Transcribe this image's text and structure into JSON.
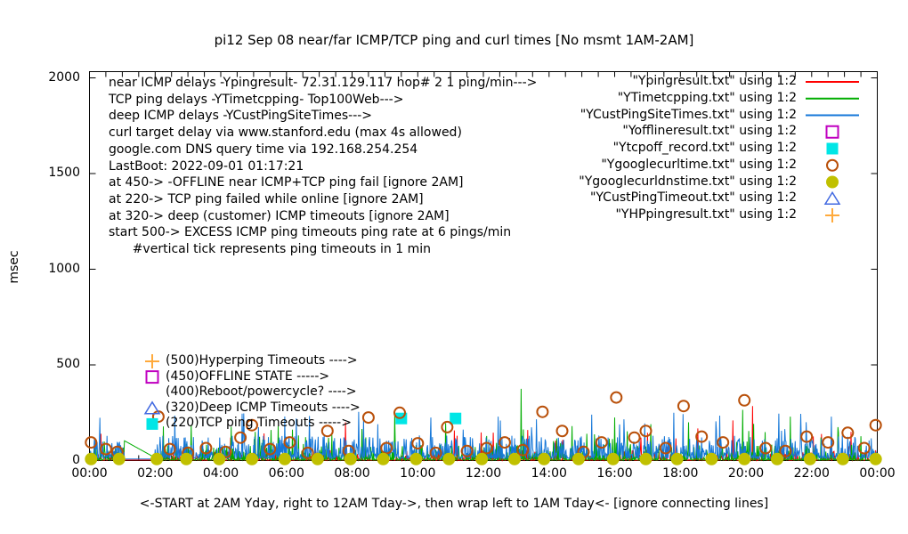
{
  "title": "pi12 Sep 08  near/far ICMP/TCP ping and curl times [No msmt 1AM-2AM]",
  "y_axis_label": "msec",
  "x_caption": "<-START at 2AM Yday, right to 12AM Tday->, then wrap left to 1AM Tday<- [ignore connecting lines]",
  "info_block": {
    "lines": [
      "near ICMP delays -Ypingresult- 72.31.129.117 hop# 2 1 ping/min--->",
      "TCP ping delays -YTimetcpping- Top100Web--->",
      "deep ICMP delays -YCustPingSiteTimes--->",
      "curl target delay via www.stanford.edu (max 4s allowed)",
      "google.com DNS query time via 192.168.254.254",
      "LastBoot: 2022-09-01 01:17:21",
      "at 450-> -OFFLINE near ICMP+TCP ping fail [ignore 2AM]",
      "at 220-> TCP ping failed while online [ignore 2AM]",
      "at 320-> deep (customer) ICMP timeouts [ignore 2AM]",
      "start 500-> EXCESS ICMP ping timeouts ping rate at 6 pings/min",
      "      #vertical tick represents ping timeouts in 1 min"
    ]
  },
  "legend": [
    {
      "label": "\"Ypingresult.txt\" using 1:2",
      "marker": "line",
      "color": "#ff0000"
    },
    {
      "label": "\"YTimetcpping.txt\" using 1:2",
      "marker": "line",
      "color": "#00ad00"
    },
    {
      "label": "\"YCustPingSiteTimes.txt\" using 1:2",
      "marker": "line",
      "color": "#1577d8"
    },
    {
      "label": "\"Yofflineresult.txt\" using 1:2",
      "marker": "open-square",
      "color": "#c000c0"
    },
    {
      "label": "\"Ytcpoff_record.txt\" using 1:2",
      "marker": "filled-square",
      "color": "#00e6e6"
    },
    {
      "label": "\"Ygooglecurltime.txt\" using 1:2",
      "marker": "open-circle",
      "color": "#b9500a"
    },
    {
      "label": "\"Ygooglecurldnstime.txt\" using 1:2",
      "marker": "filled-circle",
      "color": "#c0c000"
    },
    {
      "label": "\"YCustPingTimeout.txt\" using 1:2",
      "marker": "open-triangle",
      "color": "#4169e1"
    },
    {
      "label": "\"YHPpingresult.txt\" using 1:2",
      "marker": "plus",
      "color": "#ffaa3c"
    }
  ],
  "plot_annotations": [
    {
      "marker": "plus",
      "color": "#ffaa3c",
      "label": "(500)Hyperping Timeouts ---->"
    },
    {
      "marker": "open-square",
      "color": "#c000c0",
      "label": "(450)OFFLINE STATE ----->"
    },
    {
      "marker": "none",
      "color": "",
      "label": "(400)Reboot/powercycle? ---->"
    },
    {
      "marker": "open-triangle",
      "color": "#4169e1",
      "label": "(320)Deep ICMP Timeouts ---->"
    },
    {
      "marker": "filled-square",
      "color": "#00e6e6",
      "label": "(220)TCP ping Timeouts ----->"
    }
  ],
  "chart_data": {
    "type": "line",
    "title": "pi12 Sep 08  near/far ICMP/TCP ping and curl times [No msmt 1AM-2AM]",
    "xlabel": "<-START at 2AM Yday, right to 12AM Tday->, then wrap left to 1AM Tday<- [ignore connecting lines]",
    "ylabel": "msec",
    "grid": false,
    "legend_position": "top-right",
    "ylim": [
      0,
      2000
    ],
    "y_ticks": [
      "0",
      "500",
      "1000",
      "1500",
      "2000"
    ],
    "x_range_hours": [
      0,
      24
    ],
    "x_ticks": [
      "00:00",
      "02:00",
      "04:00",
      "06:00",
      "08:00",
      "10:00",
      "12:00",
      "14:00",
      "16:00",
      "18:00",
      "20:00",
      "22:00",
      "00:00"
    ],
    "x_minor_tick_minutes": 30,
    "no_measurement_gap_hours": [
      1.05,
      2.0
    ],
    "noise_seed": 42,
    "series": [
      {
        "name": "Ypingresult.txt",
        "style": "impulse-line",
        "color": "#ff0000",
        "desc": "near ICMP ping delays, 1 ping/min, dense noise",
        "typical_range_ms": [
          2,
          60
        ],
        "spikes": [
          [
            0.35,
            140
          ],
          [
            4.3,
            120
          ],
          [
            7.8,
            200
          ],
          [
            11.2,
            130
          ],
          [
            13.35,
            160
          ],
          [
            17.0,
            145
          ],
          [
            19.6,
            210
          ],
          [
            20.2,
            285
          ],
          [
            23.2,
            150
          ]
        ]
      },
      {
        "name": "YTimetcpping.txt",
        "style": "impulse-line",
        "color": "#00ad00",
        "desc": "TCP ping delays Top100Web, dense noise",
        "typical_range_ms": [
          3,
          90
        ],
        "spikes": [
          [
            3.1,
            185
          ],
          [
            5.05,
            150
          ],
          [
            8.3,
            165
          ],
          [
            9.3,
            240
          ],
          [
            13.15,
            375
          ],
          [
            14.7,
            180
          ],
          [
            16.0,
            225
          ],
          [
            17.1,
            190
          ],
          [
            18.25,
            200
          ],
          [
            19.9,
            265
          ],
          [
            21.35,
            230
          ],
          [
            22.8,
            175
          ]
        ],
        "wrap_connector": {
          "from": [
            1.05,
            105
          ],
          "to": [
            2.0,
            15
          ]
        }
      },
      {
        "name": "YCustPingSiteTimes.txt",
        "style": "impulse-line",
        "color": "#1577d8",
        "desc": "deep ICMP ping delays, dense noise",
        "typical_range_ms": [
          15,
          160
        ],
        "spikes": [
          [
            2.6,
            235
          ],
          [
            4.65,
            245
          ],
          [
            6.3,
            220
          ],
          [
            8.2,
            255
          ],
          [
            10.4,
            225
          ],
          [
            12.45,
            230
          ],
          [
            15.3,
            240
          ],
          [
            17.8,
            250
          ],
          [
            19.2,
            235
          ],
          [
            21.0,
            245
          ],
          [
            22.6,
            230
          ]
        ]
      },
      {
        "name": "Yofflineresult.txt",
        "style": "points",
        "marker": "open-square",
        "color": "#c000c0",
        "marker_value_ms": 450,
        "points": []
      },
      {
        "name": "Ytcpoff_record.txt",
        "style": "points",
        "marker": "filled-square",
        "color": "#00e6e6",
        "marker_value_ms": 220,
        "points": [
          [
            9.5,
            220
          ],
          [
            11.15,
            220
          ]
        ]
      },
      {
        "name": "Ygooglecurltime.txt",
        "style": "points",
        "marker": "open-circle",
        "color": "#b9500a",
        "points": [
          [
            0.05,
            95
          ],
          [
            0.5,
            60
          ],
          [
            0.85,
            45
          ],
          [
            2.1,
            230
          ],
          [
            2.45,
            60
          ],
          [
            3.0,
            40
          ],
          [
            3.55,
            65
          ],
          [
            4.15,
            45
          ],
          [
            4.6,
            120
          ],
          [
            4.95,
            185
          ],
          [
            5.5,
            60
          ],
          [
            6.1,
            95
          ],
          [
            6.65,
            40
          ],
          [
            7.25,
            155
          ],
          [
            7.9,
            50
          ],
          [
            8.5,
            225
          ],
          [
            9.05,
            65
          ],
          [
            9.45,
            250
          ],
          [
            10.0,
            90
          ],
          [
            10.55,
            40
          ],
          [
            10.9,
            175
          ],
          [
            11.5,
            50
          ],
          [
            12.1,
            65
          ],
          [
            12.65,
            95
          ],
          [
            13.2,
            55
          ],
          [
            13.8,
            255
          ],
          [
            14.4,
            155
          ],
          [
            15.05,
            45
          ],
          [
            15.6,
            95
          ],
          [
            16.05,
            330
          ],
          [
            16.6,
            120
          ],
          [
            16.95,
            155
          ],
          [
            17.55,
            65
          ],
          [
            18.1,
            285
          ],
          [
            18.65,
            125
          ],
          [
            19.3,
            95
          ],
          [
            19.95,
            315
          ],
          [
            20.6,
            65
          ],
          [
            21.2,
            50
          ],
          [
            21.85,
            125
          ],
          [
            22.5,
            95
          ],
          [
            23.1,
            145
          ],
          [
            23.6,
            65
          ],
          [
            23.95,
            185
          ]
        ]
      },
      {
        "name": "Ygooglecurldnstime.txt",
        "style": "points",
        "marker": "filled-circle",
        "color": "#c0c000",
        "points": [
          [
            0.05,
            8
          ],
          [
            0.9,
            8
          ],
          [
            2.05,
            8
          ],
          [
            2.95,
            8
          ],
          [
            3.95,
            8
          ],
          [
            4.95,
            8
          ],
          [
            5.95,
            8
          ],
          [
            6.95,
            8
          ],
          [
            7.95,
            8
          ],
          [
            8.95,
            8
          ],
          [
            9.95,
            8
          ],
          [
            10.95,
            8
          ],
          [
            11.95,
            8
          ],
          [
            12.95,
            8
          ],
          [
            13.85,
            8
          ],
          [
            14.9,
            8
          ],
          [
            15.95,
            8
          ],
          [
            16.95,
            8
          ],
          [
            17.9,
            8
          ],
          [
            18.95,
            8
          ],
          [
            19.95,
            8
          ],
          [
            20.95,
            8
          ],
          [
            21.95,
            8
          ],
          [
            22.95,
            8
          ],
          [
            23.95,
            8
          ]
        ]
      },
      {
        "name": "YCustPingTimeout.txt",
        "style": "points",
        "marker": "open-triangle",
        "color": "#4169e1",
        "marker_value_ms": 320,
        "points": []
      },
      {
        "name": "YHPpingresult.txt",
        "style": "points",
        "marker": "plus",
        "color": "#ffaa3c",
        "marker_value_ms": 500,
        "points": []
      }
    ]
  }
}
